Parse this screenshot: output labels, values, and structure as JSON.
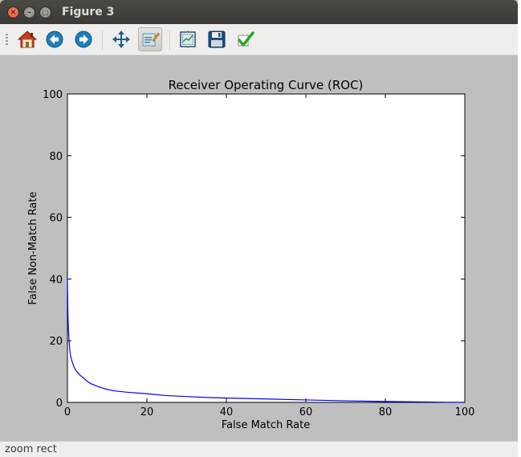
{
  "window": {
    "title": "Figure 3",
    "close_glyph": "×",
    "min_glyph": "–",
    "max_glyph": "□"
  },
  "toolbar": {
    "buttons": [
      {
        "name": "home-button",
        "icon": "home-icon"
      },
      {
        "name": "back-button",
        "icon": "arrow-left-icon"
      },
      {
        "name": "forward-button",
        "icon": "arrow-right-icon"
      },
      {
        "name": "pan-button",
        "icon": "move-icon"
      },
      {
        "name": "zoom-button",
        "icon": "zoom-rect-icon",
        "active": true
      },
      {
        "name": "subplots-button",
        "icon": "subplots-icon"
      },
      {
        "name": "save-button",
        "icon": "floppy-disk-icon"
      },
      {
        "name": "edit-axis-button",
        "icon": "checkmark-icon"
      }
    ]
  },
  "status": {
    "text": "zoom rect"
  },
  "chart_data": {
    "type": "line",
    "title": "Receiver Operating Curve (ROC)",
    "xlabel": "False Match Rate",
    "ylabel": "False Non-Match Rate",
    "xlim": [
      0,
      100
    ],
    "ylim": [
      0,
      100
    ],
    "xticks": [
      0,
      20,
      40,
      60,
      80,
      100
    ],
    "yticks": [
      0,
      20,
      40,
      60,
      80,
      100
    ],
    "grid": false,
    "series": [
      {
        "name": "ROC",
        "color": "#0000ff",
        "x": [
          0,
          0.1,
          0.2,
          0.4,
          0.6,
          0.8,
          1.0,
          1.5,
          2,
          3,
          4,
          5,
          6,
          8,
          10,
          12,
          15,
          20,
          25,
          30,
          35,
          40,
          50,
          60,
          70,
          80,
          90,
          95,
          100
        ],
        "y": [
          40,
          30,
          25,
          20,
          17,
          15,
          14,
          12,
          10.5,
          9,
          8,
          6.8,
          6,
          5,
          4.2,
          3.7,
          3.3,
          2.8,
          2.2,
          1.9,
          1.6,
          1.4,
          1.1,
          0.8,
          0.5,
          0.3,
          0.15,
          0.05,
          0
        ]
      }
    ]
  }
}
